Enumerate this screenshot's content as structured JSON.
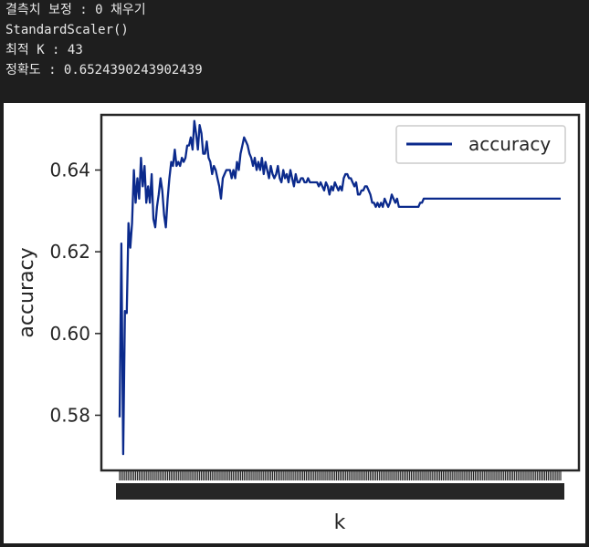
{
  "console": {
    "lines": [
      "결측치 보정 : 0 채우기",
      "StandardScaler()",
      "최적 K : 43",
      "정확도 : 0.6524390243902439"
    ]
  },
  "chart_data": {
    "type": "line",
    "xlabel": "k",
    "ylabel": "accuracy",
    "xlim": [
      1,
      249
    ],
    "ylim": [
      0.5665,
      0.6535
    ],
    "yticks": [
      0.58,
      0.6,
      0.62,
      0.64
    ],
    "ytick_labels": [
      "0.58",
      "0.60",
      "0.62",
      "0.64"
    ],
    "xtick_labels_overlapping": true,
    "grid": false,
    "legend": {
      "position": "top-right"
    },
    "series": [
      {
        "name": "accuracy",
        "color": "#0b2a8c",
        "points": [
          [
            1,
            0.5795
          ],
          [
            2,
            0.622
          ],
          [
            3,
            0.5705
          ],
          [
            4,
            0.6055
          ],
          [
            5,
            0.605
          ],
          [
            6,
            0.627
          ],
          [
            7,
            0.621
          ],
          [
            8,
            0.627
          ],
          [
            9,
            0.64
          ],
          [
            10,
            0.632
          ],
          [
            11,
            0.638
          ],
          [
            12,
            0.633
          ],
          [
            13,
            0.643
          ],
          [
            14,
            0.636
          ],
          [
            15,
            0.641
          ],
          [
            16,
            0.632
          ],
          [
            17,
            0.636
          ],
          [
            18,
            0.632
          ],
          [
            19,
            0.639
          ],
          [
            20,
            0.628
          ],
          [
            21,
            0.626
          ],
          [
            22,
            0.631
          ],
          [
            23,
            0.634
          ],
          [
            24,
            0.638
          ],
          [
            25,
            0.635
          ],
          [
            26,
            0.629
          ],
          [
            27,
            0.626
          ],
          [
            28,
            0.633
          ],
          [
            29,
            0.638
          ],
          [
            30,
            0.642
          ],
          [
            31,
            0.641
          ],
          [
            32,
            0.645
          ],
          [
            33,
            0.641
          ],
          [
            34,
            0.642
          ],
          [
            35,
            0.641
          ],
          [
            36,
            0.643
          ],
          [
            37,
            0.642
          ],
          [
            38,
            0.643
          ],
          [
            39,
            0.646
          ],
          [
            40,
            0.646
          ],
          [
            41,
            0.648
          ],
          [
            42,
            0.645
          ],
          [
            43,
            0.652
          ],
          [
            44,
            0.649
          ],
          [
            45,
            0.645
          ],
          [
            46,
            0.651
          ],
          [
            47,
            0.649
          ],
          [
            48,
            0.644
          ],
          [
            49,
            0.644
          ],
          [
            50,
            0.647
          ],
          [
            51,
            0.643
          ],
          [
            52,
            0.642
          ],
          [
            53,
            0.639
          ],
          [
            54,
            0.641
          ],
          [
            55,
            0.64
          ],
          [
            56,
            0.638
          ],
          [
            57,
            0.636
          ],
          [
            58,
            0.633
          ],
          [
            59,
            0.638
          ],
          [
            60,
            0.639
          ],
          [
            61,
            0.64
          ],
          [
            62,
            0.64
          ],
          [
            63,
            0.64
          ],
          [
            64,
            0.638
          ],
          [
            65,
            0.64
          ],
          [
            66,
            0.638
          ],
          [
            67,
            0.642
          ],
          [
            68,
            0.64
          ],
          [
            69,
            0.644
          ],
          [
            70,
            0.646
          ],
          [
            71,
            0.648
          ],
          [
            72,
            0.647
          ],
          [
            73,
            0.646
          ],
          [
            74,
            0.644
          ],
          [
            75,
            0.643
          ],
          [
            76,
            0.641
          ],
          [
            77,
            0.643
          ],
          [
            78,
            0.64
          ],
          [
            79,
            0.642
          ],
          [
            80,
            0.64
          ],
          [
            81,
            0.643
          ],
          [
            82,
            0.639
          ],
          [
            83,
            0.642
          ],
          [
            84,
            0.64
          ],
          [
            85,
            0.638
          ],
          [
            86,
            0.641
          ],
          [
            87,
            0.639
          ],
          [
            88,
            0.638
          ],
          [
            89,
            0.639
          ],
          [
            90,
            0.641
          ],
          [
            91,
            0.638
          ],
          [
            92,
            0.637
          ],
          [
            93,
            0.64
          ],
          [
            94,
            0.638
          ],
          [
            95,
            0.639
          ],
          [
            96,
            0.637
          ],
          [
            97,
            0.64
          ],
          [
            98,
            0.638
          ],
          [
            99,
            0.636
          ],
          [
            100,
            0.639
          ],
          [
            101,
            0.637
          ],
          [
            102,
            0.637
          ],
          [
            103,
            0.638
          ],
          [
            104,
            0.638
          ],
          [
            105,
            0.637
          ],
          [
            106,
            0.637
          ],
          [
            107,
            0.638
          ],
          [
            108,
            0.637
          ],
          [
            109,
            0.637
          ],
          [
            110,
            0.637
          ],
          [
            111,
            0.637
          ],
          [
            112,
            0.637
          ],
          [
            113,
            0.636
          ],
          [
            114,
            0.637
          ],
          [
            115,
            0.636
          ],
          [
            116,
            0.635
          ],
          [
            117,
            0.637
          ],
          [
            118,
            0.636
          ],
          [
            119,
            0.634
          ],
          [
            120,
            0.636
          ],
          [
            121,
            0.635
          ],
          [
            122,
            0.637
          ],
          [
            123,
            0.636
          ],
          [
            124,
            0.635
          ],
          [
            125,
            0.636
          ],
          [
            126,
            0.635
          ],
          [
            127,
            0.638
          ],
          [
            128,
            0.639
          ],
          [
            129,
            0.639
          ],
          [
            130,
            0.638
          ],
          [
            131,
            0.638
          ],
          [
            132,
            0.637
          ],
          [
            133,
            0.636
          ],
          [
            134,
            0.637
          ],
          [
            135,
            0.634
          ],
          [
            136,
            0.634
          ],
          [
            137,
            0.635
          ],
          [
            138,
            0.635
          ],
          [
            139,
            0.636
          ],
          [
            140,
            0.636
          ],
          [
            141,
            0.635
          ],
          [
            142,
            0.634
          ],
          [
            143,
            0.632
          ],
          [
            144,
            0.632
          ],
          [
            145,
            0.631
          ],
          [
            146,
            0.632
          ],
          [
            147,
            0.631
          ],
          [
            148,
            0.632
          ],
          [
            149,
            0.631
          ],
          [
            150,
            0.633
          ],
          [
            151,
            0.632
          ],
          [
            152,
            0.631
          ],
          [
            153,
            0.632
          ],
          [
            154,
            0.634
          ],
          [
            155,
            0.633
          ],
          [
            156,
            0.632
          ],
          [
            157,
            0.633
          ],
          [
            158,
            0.631
          ],
          [
            159,
            0.631
          ],
          [
            160,
            0.631
          ],
          [
            161,
            0.631
          ],
          [
            162,
            0.631
          ],
          [
            163,
            0.631
          ],
          [
            164,
            0.631
          ],
          [
            165,
            0.631
          ],
          [
            166,
            0.631
          ],
          [
            167,
            0.631
          ],
          [
            168,
            0.631
          ],
          [
            169,
            0.631
          ],
          [
            170,
            0.632
          ],
          [
            171,
            0.632
          ],
          [
            172,
            0.633
          ],
          [
            173,
            0.633
          ],
          [
            174,
            0.633
          ],
          [
            175,
            0.633
          ],
          [
            176,
            0.633
          ],
          [
            177,
            0.633
          ],
          [
            178,
            0.633
          ],
          [
            179,
            0.633
          ],
          [
            180,
            0.633
          ],
          [
            190,
            0.633
          ],
          [
            200,
            0.633
          ],
          [
            210,
            0.633
          ],
          [
            220,
            0.633
          ],
          [
            230,
            0.633
          ],
          [
            240,
            0.633
          ],
          [
            249,
            0.633
          ]
        ]
      }
    ]
  }
}
